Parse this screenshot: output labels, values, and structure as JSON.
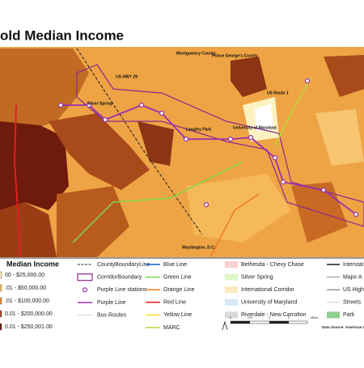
{
  "title": "old Median Income",
  "map_labels": [
    "Montgomery County",
    "Prince George's County",
    "US HWY 29",
    "Silver Spring",
    "US Route 1",
    "Langley Park",
    "University of Maryland",
    "Washington, D.C."
  ],
  "legend": {
    "income_title": "Median Income",
    "income_classes": [
      "00 - $25,000.00",
      ".01 - $50,000.00",
      ".01 - $100,000.00",
      "0.01 - $200,000.00",
      "0.01 - $250,001.00"
    ],
    "features": [
      "CountyBoundaryLine",
      "CorridorBoundary",
      "Purple Line stations",
      "Purple Line",
      "Bus Routes"
    ],
    "transit": [
      "Blue Line",
      "Green Line",
      "Orange Line",
      "Red Line",
      "Yellow Line",
      "MARC"
    ],
    "areas": [
      "Bethesda - Chevy Chase",
      "Silver Spring",
      "International Corridor",
      "University of Maryland",
      "Riverdale - New Carrolton"
    ],
    "roads": [
      "Interstat",
      "Major A",
      "US High",
      "Streets",
      "Park"
    ]
  },
  "scale": [
    "0",
    "0.5",
    "1",
    "2",
    "Miles"
  ],
  "source": "Data Source: American Com"
}
